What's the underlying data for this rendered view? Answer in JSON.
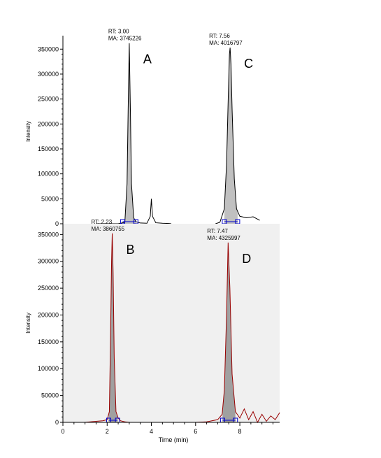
{
  "chart_data": [
    {
      "type": "line",
      "panel": "top",
      "ylabel": "Intensity",
      "ylim": [
        0,
        370000
      ],
      "yticks": [
        0,
        50000,
        100000,
        150000,
        200000,
        250000,
        300000,
        350000
      ],
      "background": "#ffffff",
      "line_color": "#000000",
      "fill_color": "#c0c0c0",
      "x": [
        1.5,
        2.5,
        2.8,
        2.9,
        2.95,
        3.0,
        3.05,
        3.1,
        3.2,
        3.3,
        3.5,
        3.8,
        3.95,
        4.0,
        4.05,
        4.2,
        4.5,
        4.8,
        4.9
      ],
      "y": [
        0,
        0,
        3000,
        80000,
        230000,
        362000,
        230000,
        80000,
        12000,
        4000,
        1500,
        1000,
        15000,
        50000,
        15000,
        2000,
        1000,
        500,
        0
      ],
      "x2": [
        6.9,
        7.1,
        7.3,
        7.4,
        7.48,
        7.53,
        7.56,
        7.6,
        7.65,
        7.75,
        7.85,
        8.0,
        8.3,
        8.6,
        8.9
      ],
      "y2": [
        0,
        3000,
        30000,
        120000,
        260000,
        340000,
        353000,
        320000,
        230000,
        90000,
        30000,
        15000,
        12000,
        14000,
        7000
      ],
      "peaks": [
        {
          "label": "A",
          "rt_text": "RT: 3.00",
          "ma_text": "MA: 3745226",
          "rt": 3.0,
          "start": 2.7,
          "end": 3.3,
          "height": 362000
        },
        {
          "label": "C",
          "rt_text": "RT: 7.56",
          "ma_text": "MA: 4016797",
          "rt": 7.56,
          "start": 7.3,
          "end": 7.9,
          "height": 353000
        }
      ]
    },
    {
      "type": "line",
      "panel": "bottom",
      "ylabel": "Intensity",
      "xlabel": "Time (min)",
      "xlim": [
        0,
        9.8
      ],
      "xticks": [
        0,
        2,
        4,
        6,
        8
      ],
      "ylim": [
        0,
        370000
      ],
      "yticks": [
        0,
        50000,
        100000,
        150000,
        200000,
        250000,
        300000,
        350000
      ],
      "background": "#f0f0f0",
      "line_color": "#990000",
      "fill_color": "#a0a0a0",
      "x": [
        0,
        1.0,
        1.5,
        1.8,
        2.0,
        2.1,
        2.15,
        2.2,
        2.23,
        2.27,
        2.32,
        2.4,
        2.5,
        2.6,
        2.8,
        3.0,
        3.5,
        4.0,
        5.0,
        6.0,
        6.5,
        7.0,
        7.2,
        7.3,
        7.4,
        7.47,
        7.55,
        7.65,
        7.8,
        8.0,
        8.2,
        8.4,
        8.6,
        8.8,
        9.0,
        9.2,
        9.4,
        9.6,
        9.8
      ],
      "y": [
        0,
        0,
        2000,
        3000,
        5000,
        20000,
        150000,
        300000,
        352000,
        280000,
        120000,
        20000,
        8000,
        3000,
        1000,
        0,
        0,
        0,
        0,
        0,
        1000,
        5000,
        15000,
        60000,
        200000,
        335000,
        250000,
        90000,
        20000,
        8000,
        25000,
        5000,
        20000,
        0,
        15000,
        2000,
        12000,
        5000,
        18000
      ],
      "peaks": [
        {
          "label": "B",
          "rt_text": "RT: 2.23",
          "ma_text": "MA: 3860755",
          "rt": 2.23,
          "start": 2.07,
          "end": 2.47,
          "height": 352000
        },
        {
          "label": "D",
          "rt_text": "RT: 7.47",
          "ma_text": "MA: 4325997",
          "rt": 7.47,
          "start": 7.22,
          "end": 7.8,
          "height": 335000
        }
      ]
    }
  ]
}
